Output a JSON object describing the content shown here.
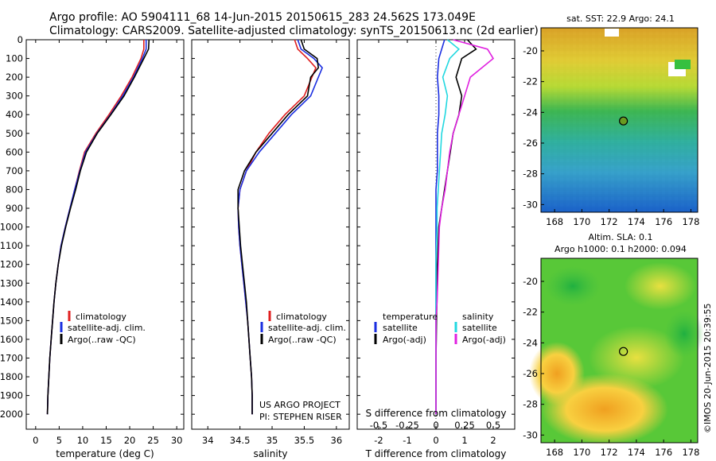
{
  "header": {
    "line1": "Argo profile: AO 5904111_68 14-Jun-2015 20150615_283 24.562S 173.049E",
    "line2": "Climatology: CARS2009. Satellite-adjusted climatology: synTS_20150613.nc (2d earlier)"
  },
  "colors": {
    "climatology": "#e02020",
    "satellite": "#1a2ee0",
    "argo": "#000000",
    "sat_salinity": "#22d8e0",
    "argo_salinity": "#e020e0"
  },
  "side_labels": {
    "sst_title": "sat. SST: 22.9 Argo: 24.1",
    "sla_title1": "Altim. SLA: 0.1",
    "sla_title2": "Argo h1000: 0.1 h2000: 0.094",
    "stamp": "©IMOS 20-Jun-2015 20:39:55"
  },
  "project_credit": {
    "line1": "US ARGO PROJECT",
    "line2": "PI: STEPHEN RISER"
  },
  "chart_data": [
    {
      "type": "line",
      "xlabel": "temperature (deg C)",
      "ylabel": "",
      "xlim": [
        -2,
        31.5
      ],
      "ylim": [
        2080,
        0
      ],
      "xticks": [
        "0",
        "5",
        "10",
        "15",
        "20",
        "25",
        "30"
      ],
      "yticks": [
        "0",
        "100",
        "200",
        "300",
        "400",
        "500",
        "600",
        "700",
        "800",
        "900",
        "1000",
        "1100",
        "1200",
        "1300",
        "1400",
        "1500",
        "1600",
        "1700",
        "1800",
        "1900",
        "2000"
      ],
      "legend": [
        "climatology",
        "satellite-adj. clim.",
        "Argo(..raw -QC)"
      ],
      "legend_position": "lower-left",
      "series": [
        {
          "name": "climatology",
          "x": [
            23.0,
            23.0,
            22.4,
            20.5,
            18.2,
            15.6,
            12.8,
            10.4,
            9.3,
            8.3,
            7.3,
            6.3,
            5.4,
            4.8,
            4.3,
            3.9,
            3.6,
            3.3,
            3.0,
            2.8,
            2.6,
            2.5
          ],
          "y": [
            0,
            50,
            100,
            200,
            300,
            400,
            500,
            600,
            700,
            800,
            900,
            1000,
            1100,
            1200,
            1300,
            1400,
            1500,
            1600,
            1700,
            1800,
            1900,
            2000
          ]
        },
        {
          "name": "satellite-adj. clim.",
          "x": [
            23.5,
            23.5,
            22.7,
            20.8,
            18.5,
            15.9,
            13.0,
            10.6,
            9.4,
            8.3,
            7.3,
            6.3,
            5.4,
            4.8,
            4.3,
            3.9,
            3.6,
            3.3,
            3.0,
            2.8,
            2.6,
            2.5
          ],
          "y": [
            0,
            50,
            100,
            200,
            300,
            400,
            500,
            600,
            700,
            800,
            900,
            1000,
            1100,
            1200,
            1300,
            1400,
            1500,
            1600,
            1700,
            1800,
            1900,
            2000
          ]
        },
        {
          "name": "Argo(..raw -QC)",
          "x": [
            24.1,
            24.0,
            23.0,
            21.0,
            18.8,
            16.0,
            13.1,
            10.8,
            9.5,
            8.5,
            7.4,
            6.4,
            5.5,
            4.8,
            4.3,
            3.9,
            3.6,
            3.3,
            3.0,
            2.8,
            2.6,
            2.5
          ],
          "y": [
            0,
            50,
            100,
            200,
            300,
            400,
            500,
            600,
            700,
            800,
            900,
            1000,
            1100,
            1200,
            1300,
            1400,
            1500,
            1600,
            1700,
            1800,
            1900,
            2000
          ]
        }
      ]
    },
    {
      "type": "line",
      "xlabel": "salinity",
      "ylabel": "",
      "xlim": [
        33.75,
        36.2
      ],
      "ylim": [
        2080,
        0
      ],
      "xticks": [
        "34",
        "34.5",
        "35",
        "35.5",
        "36"
      ],
      "legend": [
        "climatology",
        "satellite-adj. clim.",
        "Argo(..raw -QC)"
      ],
      "legend_position": "lower-right",
      "series": [
        {
          "name": "climatology",
          "x": [
            35.35,
            35.4,
            35.55,
            35.68,
            35.62,
            35.5,
            35.2,
            34.95,
            34.75,
            34.6,
            34.5,
            34.47,
            34.48,
            34.5,
            34.53,
            34.56,
            34.59,
            34.62,
            34.64,
            34.66,
            34.68,
            34.69,
            34.69
          ],
          "y": [
            0,
            50,
            100,
            150,
            200,
            300,
            400,
            500,
            600,
            700,
            800,
            900,
            1000,
            1100,
            1200,
            1300,
            1400,
            1500,
            1600,
            1700,
            1800,
            1900,
            2000
          ]
        },
        {
          "name": "satellite-adj. clim.",
          "x": [
            35.4,
            35.45,
            35.65,
            35.78,
            35.72,
            35.6,
            35.3,
            35.05,
            34.8,
            34.6,
            34.5,
            34.47,
            34.48,
            34.5,
            34.53,
            34.56,
            34.59,
            34.62,
            34.64,
            34.66,
            34.68,
            34.69,
            34.69
          ],
          "y": [
            0,
            50,
            100,
            150,
            200,
            300,
            400,
            500,
            600,
            700,
            800,
            900,
            1000,
            1100,
            1200,
            1300,
            1400,
            1500,
            1600,
            1700,
            1800,
            1900,
            2000
          ]
        },
        {
          "name": "Argo(..raw -QC)",
          "x": [
            35.45,
            35.5,
            35.7,
            35.72,
            35.6,
            35.55,
            35.25,
            35.0,
            34.75,
            34.57,
            34.47,
            34.47,
            34.49,
            34.51,
            34.54,
            34.57,
            34.6,
            34.62,
            34.64,
            34.66,
            34.68,
            34.69,
            34.69
          ],
          "y": [
            0,
            50,
            100,
            150,
            200,
            300,
            400,
            500,
            600,
            700,
            800,
            900,
            1000,
            1100,
            1200,
            1300,
            1400,
            1500,
            1600,
            1700,
            1800,
            1900,
            2000
          ]
        }
      ]
    },
    {
      "type": "line",
      "xlabel": "T difference from climatology",
      "xlabel2": "S difference from climatology",
      "xlim": [
        -2.75,
        2.75
      ],
      "ylim": [
        2080,
        0
      ],
      "xticks": [
        "-2",
        "-1",
        "0",
        "1",
        "2"
      ],
      "xticks_s": [
        "-0.5",
        "-0.25",
        "0",
        "0.25",
        "0.5"
      ],
      "legend": [
        "temperature",
        "satellite",
        "Argo(-adj)",
        "salinity",
        "satellite",
        "Argo(-adj)"
      ],
      "legend_position": "lower",
      "series": [
        {
          "name": "temperature satellite",
          "x": [
            0.3,
            0.2,
            0.1,
            0.05,
            0.1,
            0.1,
            0.05,
            0.05,
            0.05,
            0.0,
            0.0,
            0.0,
            0.0,
            0.0,
            0.0,
            0.0,
            0.0,
            0.0,
            0.0
          ],
          "y": [
            0,
            50,
            100,
            200,
            300,
            400,
            500,
            600,
            700,
            800,
            900,
            1000,
            1200,
            1400,
            1500,
            1600,
            1700,
            1800,
            2000
          ]
        },
        {
          "name": "temperature Argo(-adj)",
          "x": [
            1.1,
            1.4,
            0.9,
            0.7,
            0.9,
            0.8,
            0.6,
            0.5,
            0.4,
            0.3,
            0.2,
            0.1,
            0.05,
            0.03,
            0.02,
            0.01,
            0.0,
            0.0,
            0.0
          ],
          "y": [
            0,
            50,
            100,
            200,
            300,
            400,
            500,
            600,
            700,
            800,
            900,
            1000,
            1200,
            1400,
            1500,
            1600,
            1700,
            1800,
            2000
          ]
        },
        {
          "name": "salinity satellite",
          "x": [
            0.1,
            0.2,
            0.12,
            0.06,
            0.1,
            0.08,
            0.05,
            0.04,
            0.03,
            0.02,
            0.01,
            0.01,
            0.0,
            0.0,
            0.0,
            0.0,
            0.0,
            0.0,
            0.0
          ],
          "y": [
            0,
            50,
            100,
            200,
            300,
            400,
            500,
            600,
            700,
            800,
            900,
            1000,
            1200,
            1400,
            1500,
            1600,
            1700,
            1800,
            2000
          ]
        },
        {
          "name": "salinity Argo(-adj)",
          "x": [
            0.15,
            0.45,
            0.5,
            0.3,
            0.25,
            0.2,
            0.15,
            0.12,
            0.1,
            0.08,
            0.05,
            0.03,
            0.02,
            0.01,
            0.0,
            0.0,
            0.0,
            0.0,
            0.0
          ],
          "y": [
            0,
            50,
            100,
            200,
            300,
            400,
            500,
            600,
            700,
            800,
            900,
            1000,
            1200,
            1400,
            1500,
            1600,
            1700,
            1800,
            2000
          ]
        }
      ]
    },
    {
      "type": "heatmap",
      "title": "sat. SST: 22.9 Argo: 24.1",
      "xlim": [
        167,
        178.5
      ],
      "ylim": [
        -30.5,
        -18.5
      ],
      "xticks": [
        "168",
        "170",
        "172",
        "174",
        "176",
        "178"
      ],
      "yticks": [
        "-20",
        "-22",
        "-24",
        "-26",
        "-28",
        "-30"
      ],
      "marker": {
        "lon": 173.049,
        "lat": -24.562
      }
    },
    {
      "type": "heatmap",
      "title": "Altim. SLA: 0.1",
      "xlim": [
        167,
        178.5
      ],
      "ylim": [
        -30.5,
        -18.5
      ],
      "xticks": [
        "168",
        "170",
        "172",
        "174",
        "176",
        "178"
      ],
      "yticks": [
        "-20",
        "-22",
        "-24",
        "-26",
        "-28",
        "-30"
      ],
      "marker": {
        "lon": 173.049,
        "lat": -24.562
      }
    }
  ]
}
